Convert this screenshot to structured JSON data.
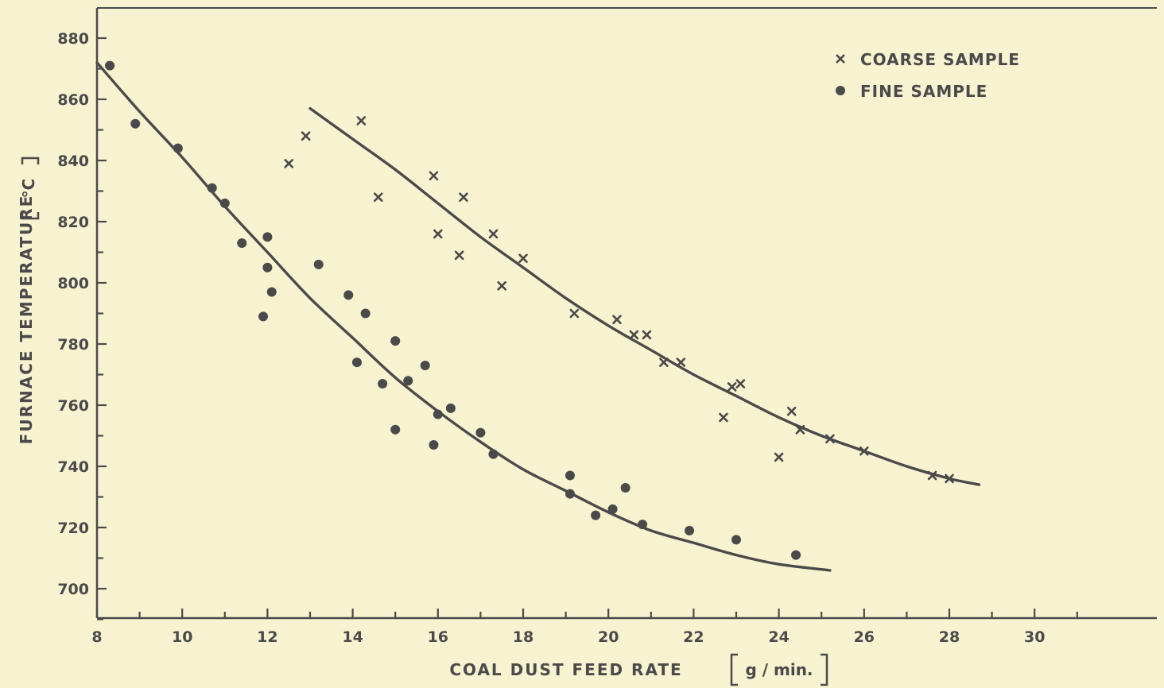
{
  "chart_data": {
    "type": "scatter",
    "title": "",
    "xlabel": "COAL DUST FEED RATE",
    "xunit": "g / min.",
    "ylabel": "FURNACE TEMPERATURE",
    "yunit": "°C",
    "xlim": [
      8,
      31
    ],
    "ylim": [
      690,
      890
    ],
    "x_ticks": [
      8,
      10,
      12,
      14,
      16,
      18,
      20,
      22,
      24,
      26,
      28,
      30
    ],
    "y_ticks": [
      700,
      720,
      740,
      760,
      780,
      800,
      820,
      840,
      860,
      880
    ],
    "grid": false,
    "legend_position": "top-right",
    "colors": {
      "ink": "#4a4a4a",
      "background": "#f7f2d0"
    },
    "series": [
      {
        "name": "COARSE SAMPLE",
        "marker": "x",
        "points": [
          [
            12.5,
            839
          ],
          [
            12.9,
            848
          ],
          [
            14.2,
            853
          ],
          [
            14.6,
            828
          ],
          [
            15.9,
            835
          ],
          [
            16.0,
            816
          ],
          [
            16.5,
            809
          ],
          [
            16.6,
            828
          ],
          [
            17.3,
            816
          ],
          [
            17.5,
            799
          ],
          [
            18.0,
            808
          ],
          [
            19.2,
            790
          ],
          [
            20.2,
            788
          ],
          [
            20.6,
            783
          ],
          [
            20.9,
            783
          ],
          [
            21.3,
            774
          ],
          [
            21.7,
            774
          ],
          [
            22.7,
            756
          ],
          [
            22.9,
            766
          ],
          [
            23.1,
            767
          ],
          [
            24.0,
            743
          ],
          [
            24.3,
            758
          ],
          [
            24.5,
            752
          ],
          [
            25.2,
            749
          ],
          [
            26.0,
            745
          ],
          [
            27.6,
            737
          ],
          [
            28.0,
            736
          ]
        ],
        "fit_curve": [
          [
            13.0,
            857
          ],
          [
            14.0,
            847
          ],
          [
            15.0,
            837
          ],
          [
            16.0,
            826
          ],
          [
            17.0,
            815
          ],
          [
            18.0,
            805
          ],
          [
            19.0,
            795
          ],
          [
            20.0,
            786
          ],
          [
            21.0,
            778
          ],
          [
            22.0,
            770
          ],
          [
            23.0,
            763
          ],
          [
            24.0,
            756
          ],
          [
            25.0,
            750
          ],
          [
            26.0,
            745
          ],
          [
            27.0,
            740
          ],
          [
            28.0,
            736
          ],
          [
            28.7,
            734
          ]
        ]
      },
      {
        "name": "FINE SAMPLE",
        "marker": "circle",
        "points": [
          [
            8.3,
            871
          ],
          [
            8.9,
            852
          ],
          [
            9.9,
            844
          ],
          [
            10.7,
            831
          ],
          [
            11.0,
            826
          ],
          [
            11.4,
            813
          ],
          [
            11.9,
            789
          ],
          [
            12.0,
            815
          ],
          [
            12.0,
            805
          ],
          [
            12.1,
            797
          ],
          [
            13.2,
            806
          ],
          [
            13.9,
            796
          ],
          [
            14.1,
            774
          ],
          [
            14.3,
            790
          ],
          [
            14.7,
            767
          ],
          [
            15.0,
            781
          ],
          [
            15.0,
            752
          ],
          [
            15.3,
            768
          ],
          [
            15.7,
            773
          ],
          [
            15.9,
            747
          ],
          [
            16.0,
            757
          ],
          [
            16.3,
            759
          ],
          [
            17.0,
            751
          ],
          [
            17.3,
            744
          ],
          [
            19.1,
            737
          ],
          [
            19.1,
            731
          ],
          [
            19.7,
            724
          ],
          [
            20.1,
            726
          ],
          [
            20.4,
            733
          ],
          [
            20.8,
            721
          ],
          [
            21.9,
            719
          ],
          [
            23.0,
            716
          ],
          [
            24.4,
            711
          ]
        ],
        "fit_curve": [
          [
            8.0,
            872
          ],
          [
            9.0,
            856
          ],
          [
            10.0,
            841
          ],
          [
            11.0,
            825
          ],
          [
            12.0,
            810
          ],
          [
            13.0,
            795
          ],
          [
            14.0,
            782
          ],
          [
            15.0,
            769
          ],
          [
            16.0,
            758
          ],
          [
            17.0,
            748
          ],
          [
            18.0,
            739
          ],
          [
            19.0,
            732
          ],
          [
            20.0,
            725
          ],
          [
            21.0,
            719
          ],
          [
            22.0,
            715
          ],
          [
            23.0,
            711
          ],
          [
            24.0,
            708
          ],
          [
            25.2,
            706
          ]
        ]
      }
    ]
  }
}
